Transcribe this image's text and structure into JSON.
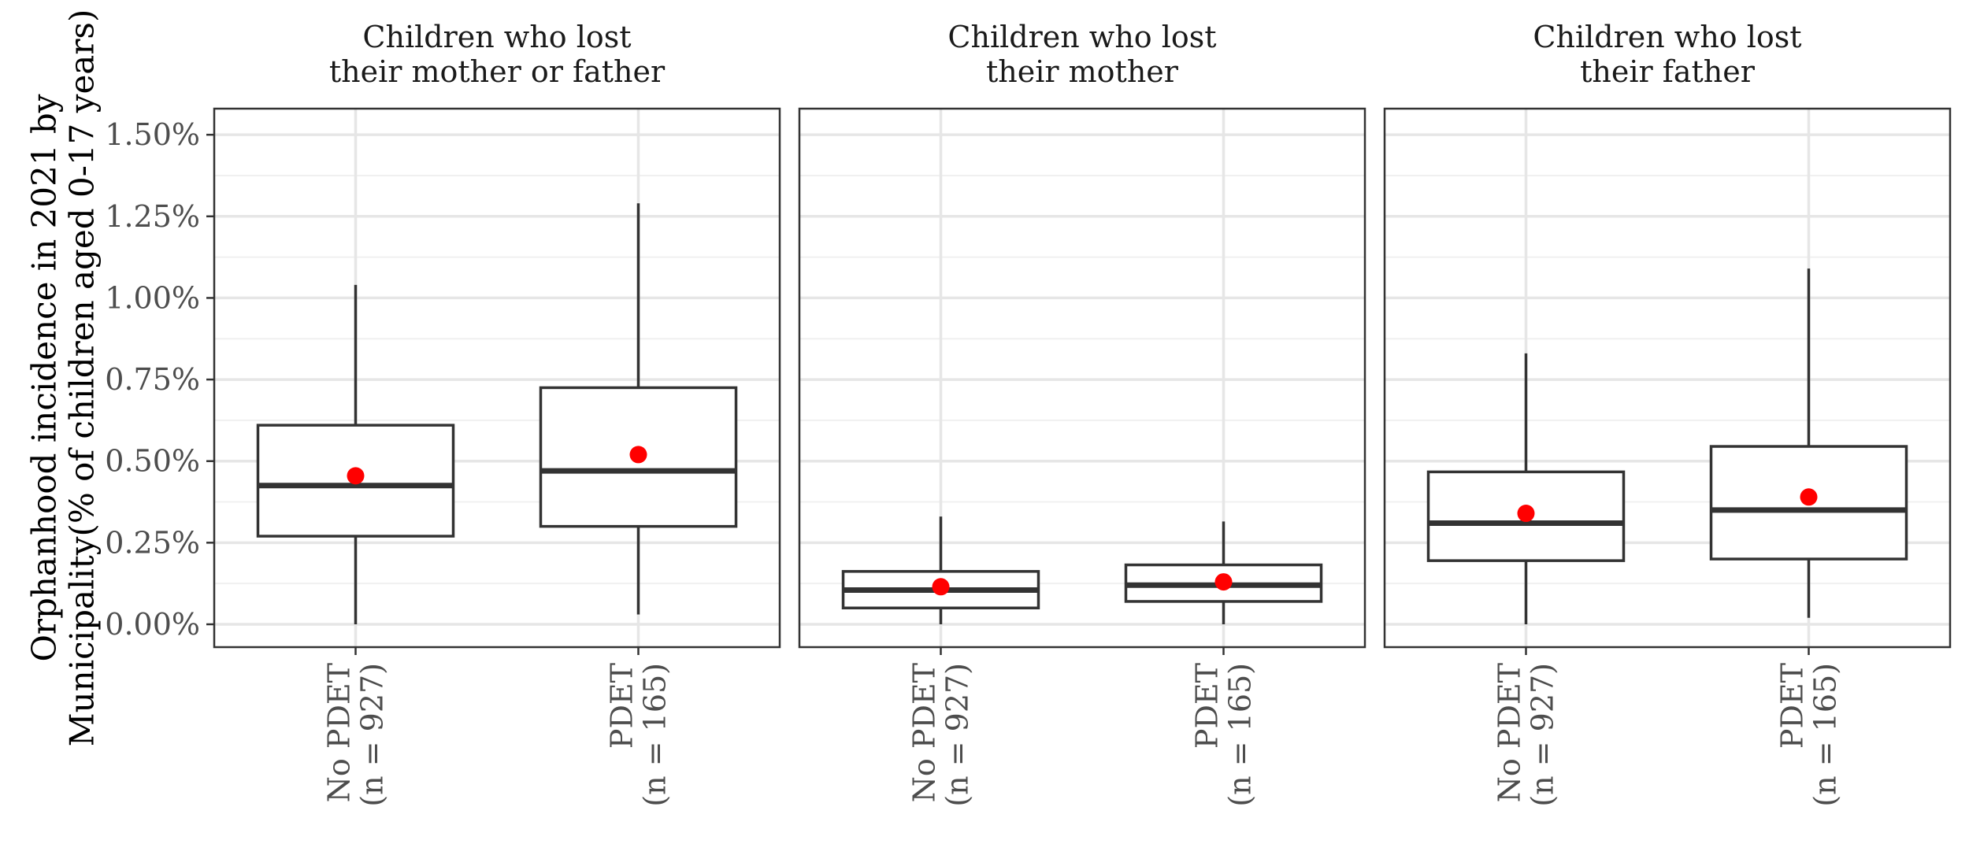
{
  "chart_data": {
    "type": "boxplot",
    "ylabel": [
      "Orphanhood incidence in 2021 by",
      "Municipality(% of children aged 0-17 years)"
    ],
    "ylim": [
      -0.0007,
      0.0158
    ],
    "yticks": [
      0,
      0.0025,
      0.005,
      0.0075,
      0.01,
      0.0125,
      0.015
    ],
    "ytick_labels": [
      "0.00%",
      "0.25%",
      "0.50%",
      "0.75%",
      "1.00%",
      "1.25%",
      "1.50%"
    ],
    "grid": true,
    "categories": [
      [
        "No PDET",
        "(n = 927)"
      ],
      [
        "PDET",
        "(n = 165)"
      ]
    ],
    "mean_color": "#ff0000",
    "box_color": "#333333",
    "panels": [
      {
        "title": [
          "Children who lost",
          "their mother or father"
        ],
        "boxes": [
          {
            "whisker_low": 0.0,
            "q1": 0.0027,
            "median": 0.00425,
            "q3": 0.0061,
            "whisker_high": 0.0104,
            "mean": 0.00455
          },
          {
            "whisker_low": 0.0003,
            "q1": 0.003,
            "median": 0.0047,
            "q3": 0.00725,
            "whisker_high": 0.0129,
            "mean": 0.0052
          }
        ]
      },
      {
        "title": [
          "Children who lost",
          "their mother"
        ],
        "boxes": [
          {
            "whisker_low": 0.0,
            "q1": 0.0005,
            "median": 0.00105,
            "q3": 0.00162,
            "whisker_high": 0.0033,
            "mean": 0.00115
          },
          {
            "whisker_low": 0.0,
            "q1": 0.0007,
            "median": 0.0012,
            "q3": 0.00182,
            "whisker_high": 0.00315,
            "mean": 0.0013
          }
        ]
      },
      {
        "title": [
          "Children who lost",
          "their father"
        ],
        "boxes": [
          {
            "whisker_low": 0.0,
            "q1": 0.00195,
            "median": 0.0031,
            "q3": 0.00467,
            "whisker_high": 0.0083,
            "mean": 0.0034
          },
          {
            "whisker_low": 0.0002,
            "q1": 0.002,
            "median": 0.0035,
            "q3": 0.00545,
            "whisker_high": 0.0109,
            "mean": 0.0039
          }
        ]
      }
    ]
  }
}
